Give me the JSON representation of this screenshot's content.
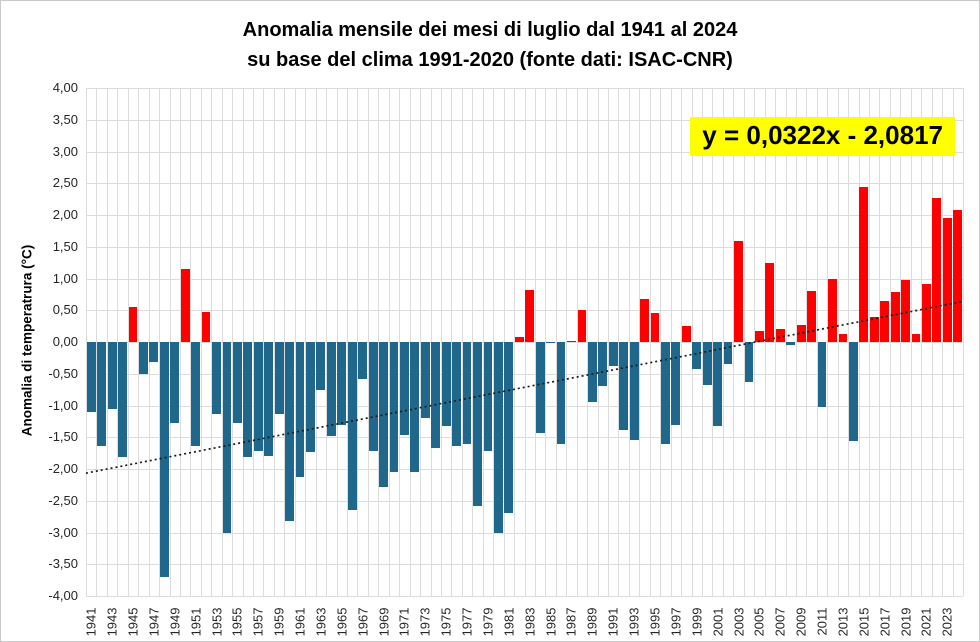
{
  "title": {
    "line1": "Anomalia mensile dei mesi di luglio dal 1941 al 2024",
    "line2": "su base del clima 1991-2020 (fonte dati: ISAC-CNR)"
  },
  "trendline_label": "y = 0,0322x - 2,0817",
  "y_axis": {
    "title": "Anomalia di temperatrura (°C)",
    "min": -4,
    "max": 4,
    "step": 0.5,
    "tick_labels": [
      "4,00",
      "3,50",
      "3,00",
      "2,50",
      "2,00",
      "1,50",
      "1,00",
      "0,50",
      "0,00",
      "-0,50",
      "-1,00",
      "-1,50",
      "-2,00",
      "-2,50",
      "-3,00",
      "-3,50",
      "-4,00"
    ]
  },
  "x_axis": {
    "tick_labels": [
      "1941",
      "1943",
      "1945",
      "1947",
      "1949",
      "1951",
      "1953",
      "1955",
      "1957",
      "1959",
      "1961",
      "1963",
      "1965",
      "1967",
      "1969",
      "1971",
      "1973",
      "1975",
      "1977",
      "1979",
      "1981",
      "1983",
      "1985",
      "1987",
      "1989",
      "1991",
      "1993",
      "1995",
      "1997",
      "1999",
      "2001",
      "2003",
      "2005",
      "2007",
      "2009",
      "2011",
      "2013",
      "2015",
      "2017",
      "2019",
      "2021",
      "2023"
    ]
  },
  "colors": {
    "positive_bar": "#ff0000",
    "negative_bar": "#20688b",
    "gridline": "#dcdcdc",
    "trendline": "#1a1a1a",
    "equation_bg": "#ffff00",
    "text": "#000000"
  },
  "chart_data": {
    "type": "bar",
    "title": "Anomalia mensile dei mesi di luglio dal 1941 al 2024 su base del clima 1991-2020 (fonte dati: ISAC-CNR)",
    "xlabel": "",
    "ylabel": "Anomalia di temperatrura (°C)",
    "ylim": [
      -4,
      4
    ],
    "grid": true,
    "legend": "none",
    "x": [
      1941,
      1942,
      1943,
      1944,
      1945,
      1946,
      1947,
      1948,
      1949,
      1950,
      1951,
      1952,
      1953,
      1954,
      1955,
      1956,
      1957,
      1958,
      1959,
      1960,
      1961,
      1962,
      1963,
      1964,
      1965,
      1966,
      1967,
      1968,
      1969,
      1970,
      1971,
      1972,
      1973,
      1974,
      1975,
      1976,
      1977,
      1978,
      1979,
      1980,
      1981,
      1982,
      1983,
      1984,
      1985,
      1986,
      1987,
      1988,
      1989,
      1990,
      1991,
      1992,
      1993,
      1994,
      1995,
      1996,
      1997,
      1998,
      1999,
      2000,
      2001,
      2002,
      2003,
      2004,
      2005,
      2006,
      2007,
      2008,
      2009,
      2010,
      2011,
      2012,
      2013,
      2014,
      2015,
      2016,
      2017,
      2018,
      2019,
      2020,
      2021,
      2022,
      2023,
      2024
    ],
    "values": [
      -1.11,
      -1.64,
      -1.06,
      -1.81,
      0.55,
      -0.5,
      -0.31,
      -3.7,
      -1.27,
      1.15,
      -1.63,
      0.48,
      -1.14,
      -3.01,
      -1.28,
      -1.81,
      -1.72,
      -1.79,
      -1.13,
      -2.82,
      -2.12,
      -1.74,
      -0.76,
      -1.48,
      -1.31,
      -2.64,
      -0.58,
      -1.71,
      -2.28,
      -2.05,
      -1.46,
      -2.05,
      -1.2,
      -1.67,
      -1.32,
      -1.63,
      -1.6,
      -2.59,
      -1.71,
      -3.01,
      -2.7,
      0.08,
      0.82,
      -1.44,
      -0.02,
      -1.61,
      0.02,
      0.5,
      -0.95,
      -0.7,
      -0.38,
      -1.38,
      -1.55,
      0.67,
      0.46,
      -1.6,
      -1.31,
      0.25,
      -0.43,
      -0.67,
      -1.33,
      -0.35,
      1.59,
      -0.63,
      0.17,
      1.25,
      0.2,
      -0.05,
      0.26,
      0.8,
      -1.02,
      0.99,
      0.12,
      -1.56,
      2.44,
      0.4,
      0.65,
      0.78,
      0.98,
      0.12,
      0.92,
      2.27,
      1.95,
      2.08
    ],
    "trendline": {
      "type": "linear",
      "slope": 0.0322,
      "intercept": -2.0817,
      "style": "dotted",
      "label": "y = 0,0322x - 2,0817"
    }
  }
}
